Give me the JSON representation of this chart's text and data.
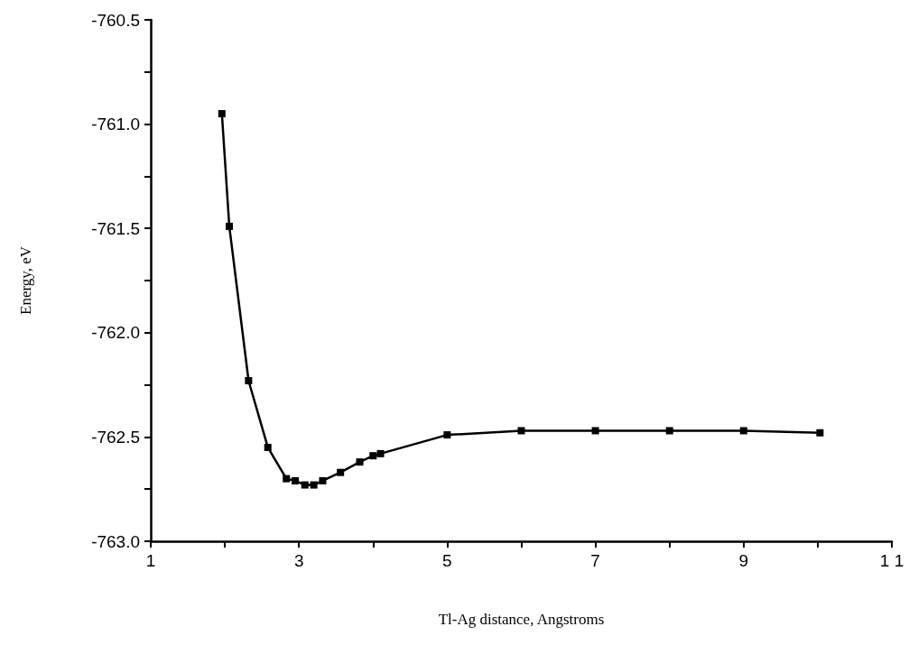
{
  "chart_data": {
    "type": "line",
    "xlabel": "Tl-Ag distance, Angstroms",
    "ylabel": "Energy, eV",
    "x": [
      1.96,
      2.06,
      2.32,
      2.58,
      2.83,
      2.95,
      3.08,
      3.2,
      3.32,
      3.56,
      3.82,
      4.0,
      4.1,
      5.0,
      6.0,
      7.0,
      8.0,
      9.0,
      10.03
    ],
    "series": [
      {
        "color": "#000000",
        "values": [
          -760.95,
          -761.49,
          -762.23,
          -762.55,
          -762.7,
          -762.71,
          -762.73,
          -762.73,
          -762.71,
          -762.67,
          -762.62,
          -762.59,
          -762.58,
          -762.49,
          -762.47,
          -762.47,
          -762.47,
          -762.47,
          -762.48
        ]
      }
    ],
    "xlim": [
      1,
      11
    ],
    "xticks": [
      1,
      {
        "value": 2,
        "label": null
      },
      3,
      {
        "value": 4,
        "label": null
      },
      5,
      {
        "value": 6,
        "label": null
      },
      7,
      {
        "value": 8,
        "label": null
      },
      9,
      {
        "value": 10,
        "label": null
      },
      {
        "value": 11,
        "label": "1 1"
      }
    ],
    "ylim": [
      -763,
      -760.5
    ],
    "yticks": [
      {
        "value": -763,
        "label": "-763.0"
      },
      {
        "value": -762.75,
        "label": null
      },
      {
        "value": -762.5,
        "label": "-762.5"
      },
      {
        "value": -762.25,
        "label": null
      },
      {
        "value": -762,
        "label": "-762.0"
      },
      {
        "value": -761.75,
        "label": null
      },
      {
        "value": -761.5,
        "label": "-761.5"
      },
      {
        "value": -761.25,
        "label": null
      },
      {
        "value": -761,
        "label": "-761.0"
      },
      {
        "value": -760.75,
        "label": null
      },
      {
        "value": -760.5,
        "label": "-760.5"
      }
    ],
    "grid": false,
    "marker": "square",
    "line_style": "solid"
  }
}
